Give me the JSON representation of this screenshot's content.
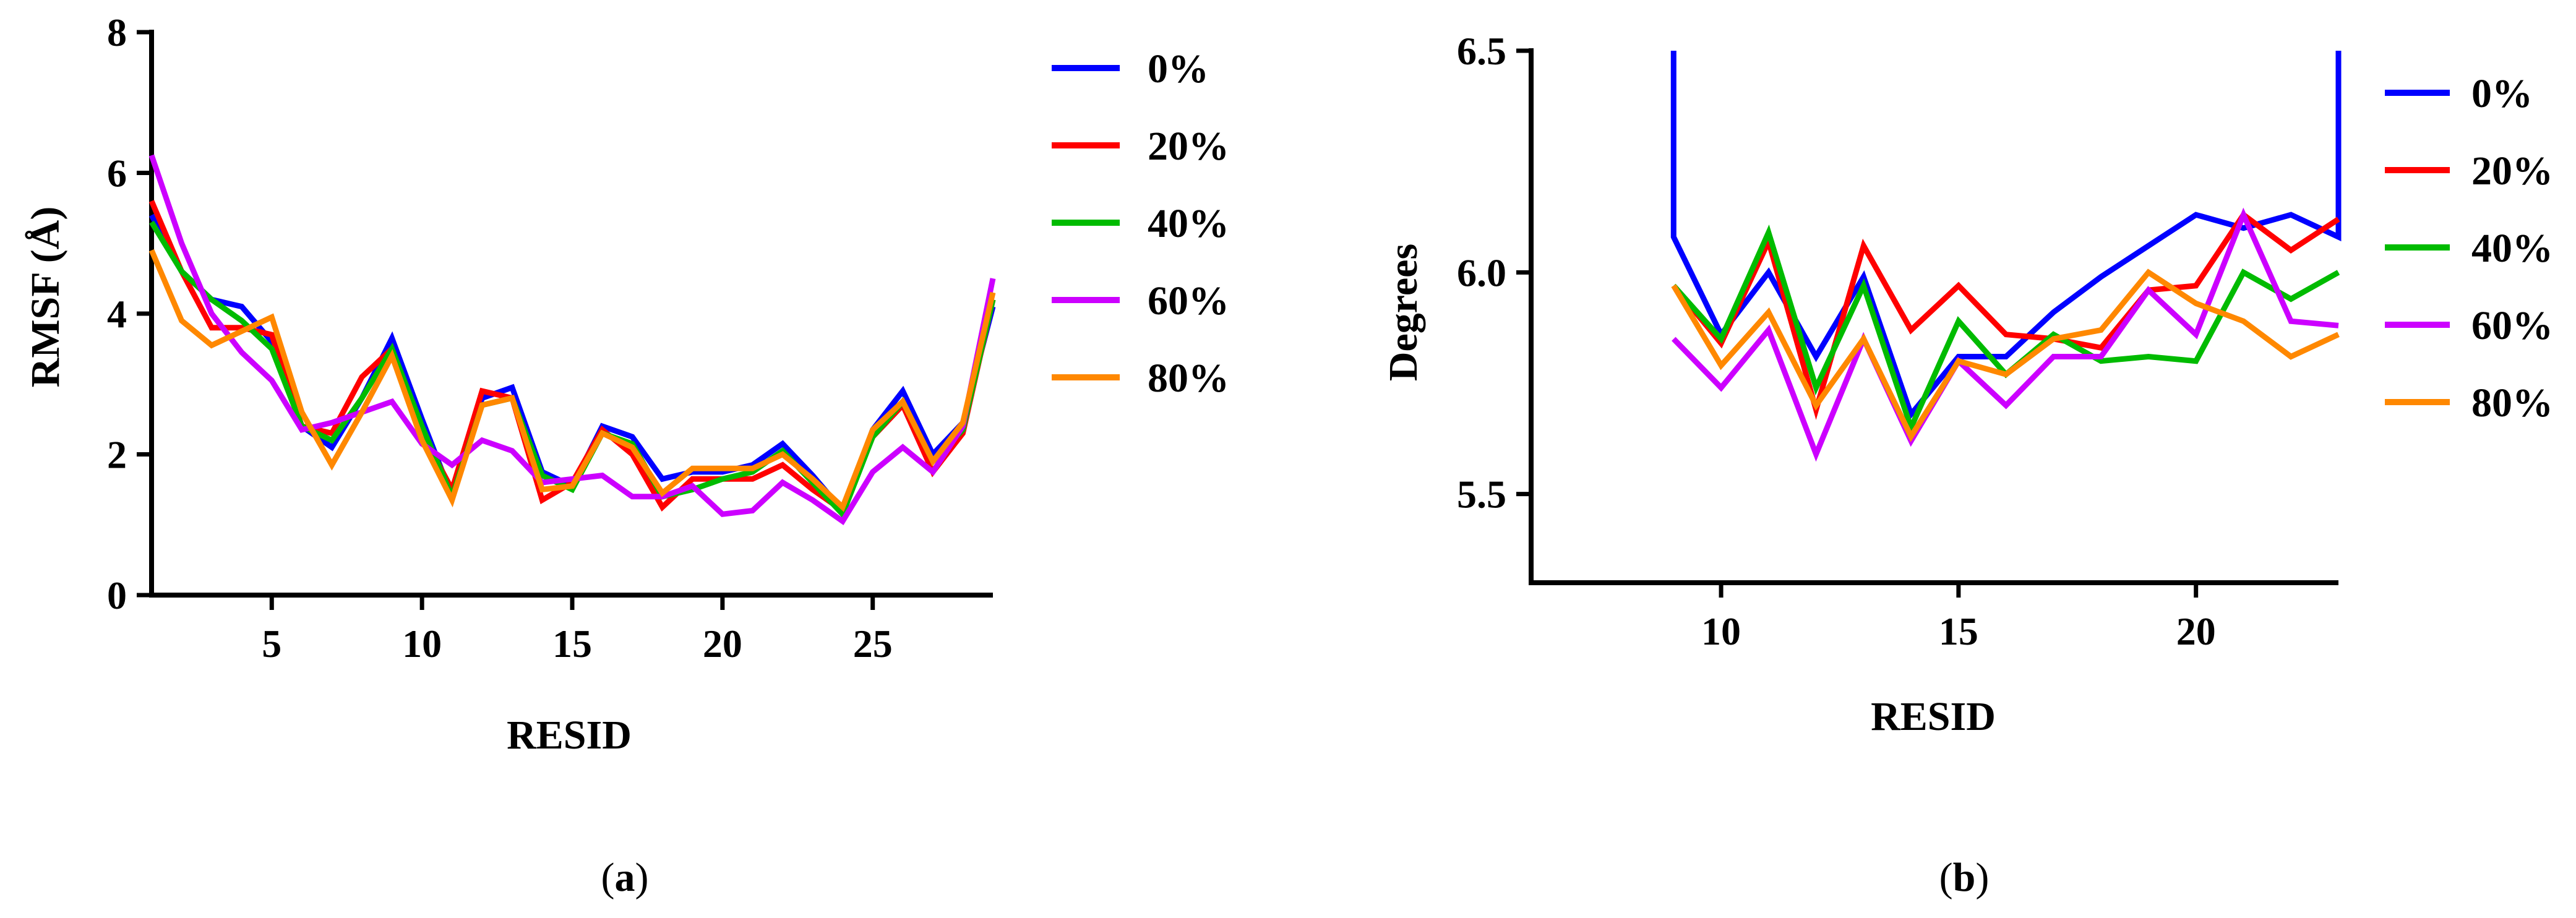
{
  "chart_data": [
    {
      "type": "line",
      "panel": "a",
      "caption": "(a)",
      "title": "",
      "xlabel": "RESID",
      "ylabel": "RMSF (Å)",
      "xlim": [
        1,
        29
      ],
      "ylim": [
        0,
        8
      ],
      "xticks": [
        5,
        10,
        15,
        20,
        25
      ],
      "xtick_labels": [
        "5",
        "10",
        "15",
        "20",
        "25"
      ],
      "yticks": [
        0,
        2,
        4,
        6,
        8
      ],
      "ytick_labels": [
        "0",
        "2",
        "4",
        "6",
        "8"
      ],
      "grid": false,
      "legend_position": "right",
      "x": [
        1,
        2,
        3,
        4,
        5,
        6,
        7,
        8,
        9,
        10,
        11,
        12,
        13,
        14,
        15,
        16,
        17,
        18,
        19,
        20,
        21,
        22,
        23,
        24,
        25,
        26,
        27,
        28,
        29
      ],
      "series": [
        {
          "name": "0%",
          "color": "#0000ff",
          "values": [
            5.4,
            4.6,
            4.2,
            4.1,
            3.6,
            2.4,
            2.1,
            2.8,
            3.65,
            2.5,
            1.4,
            2.8,
            2.95,
            1.75,
            1.55,
            2.4,
            2.25,
            1.65,
            1.75,
            1.75,
            1.85,
            2.15,
            1.7,
            1.2,
            2.35,
            2.9,
            2.0,
            2.45,
            4.1
          ]
        },
        {
          "name": "20%",
          "color": "#ff0000",
          "values": [
            5.6,
            4.6,
            3.8,
            3.8,
            3.7,
            2.4,
            2.3,
            3.1,
            3.5,
            2.3,
            1.5,
            2.9,
            2.8,
            1.35,
            1.6,
            2.35,
            2.0,
            1.25,
            1.65,
            1.65,
            1.65,
            1.85,
            1.5,
            1.2,
            2.25,
            2.7,
            1.75,
            2.3,
            4.2
          ]
        },
        {
          "name": "40%",
          "color": "#00bb00",
          "values": [
            5.3,
            4.6,
            4.2,
            3.9,
            3.5,
            2.4,
            2.2,
            2.8,
            3.5,
            2.4,
            1.4,
            2.7,
            2.8,
            1.7,
            1.5,
            2.3,
            2.15,
            1.4,
            1.5,
            1.65,
            1.75,
            2.05,
            1.6,
            1.15,
            2.25,
            2.75,
            1.9,
            2.35,
            4.2
          ]
        },
        {
          "name": "60%",
          "color": "#cc00ff",
          "values": [
            6.25,
            5.0,
            4.0,
            3.45,
            3.05,
            2.35,
            2.45,
            2.6,
            2.75,
            2.15,
            1.85,
            2.2,
            2.05,
            1.6,
            1.65,
            1.7,
            1.4,
            1.4,
            1.55,
            1.15,
            1.2,
            1.6,
            1.35,
            1.05,
            1.75,
            2.1,
            1.75,
            2.4,
            4.5
          ]
        },
        {
          "name": "80%",
          "color": "#ff8800",
          "values": [
            4.9,
            3.9,
            3.55,
            3.75,
            3.95,
            2.6,
            1.85,
            2.6,
            3.4,
            2.2,
            1.35,
            2.7,
            2.8,
            1.5,
            1.55,
            2.3,
            2.1,
            1.45,
            1.8,
            1.8,
            1.8,
            2.0,
            1.65,
            1.25,
            2.35,
            2.75,
            1.9,
            2.45,
            4.3
          ]
        }
      ]
    },
    {
      "type": "line",
      "panel": "b",
      "caption": "(b)",
      "title": "",
      "xlabel": "RESID",
      "ylabel": "Degrees",
      "xlim": [
        6,
        23
      ],
      "ylim": [
        5.3,
        6.5
      ],
      "xticks": [
        10,
        15,
        20
      ],
      "xtick_labels": [
        "10",
        "15",
        "20"
      ],
      "yticks": [
        5.5,
        6.0,
        6.5
      ],
      "ytick_labels": [
        "5.5",
        "6.0",
        "6.5"
      ],
      "grid": false,
      "legend_position": "right",
      "x": [
        9,
        10,
        11,
        12,
        13,
        14,
        15,
        16,
        17,
        18,
        19,
        20,
        21,
        22,
        23
      ],
      "series": [
        {
          "name": "0%",
          "color": "#0000ff",
          "values": [
            6.08,
            5.86,
            6.0,
            5.81,
            5.99,
            5.68,
            5.81,
            5.81,
            5.91,
            5.99,
            6.06,
            6.13,
            6.1,
            6.13,
            6.08
          ],
          "edge_spikes": true
        },
        {
          "name": "20%",
          "color": "#ff0000",
          "values": [
            5.97,
            5.84,
            6.07,
            5.69,
            6.06,
            5.87,
            5.97,
            5.86,
            5.85,
            5.83,
            5.96,
            5.97,
            6.13,
            6.05,
            6.12
          ]
        },
        {
          "name": "40%",
          "color": "#00bb00",
          "values": [
            5.97,
            5.85,
            6.09,
            5.74,
            5.97,
            5.65,
            5.89,
            5.77,
            5.86,
            5.8,
            5.81,
            5.8,
            6.0,
            5.94,
            6.0
          ]
        },
        {
          "name": "60%",
          "color": "#cc00ff",
          "values": [
            5.85,
            5.74,
            5.87,
            5.59,
            5.85,
            5.62,
            5.8,
            5.7,
            5.81,
            5.81,
            5.96,
            5.86,
            6.13,
            5.89,
            5.88
          ]
        },
        {
          "name": "80%",
          "color": "#ff8800",
          "values": [
            5.97,
            5.79,
            5.91,
            5.7,
            5.85,
            5.63,
            5.8,
            5.77,
            5.85,
            5.87,
            6.0,
            5.93,
            5.89,
            5.81,
            5.86
          ]
        }
      ]
    }
  ]
}
